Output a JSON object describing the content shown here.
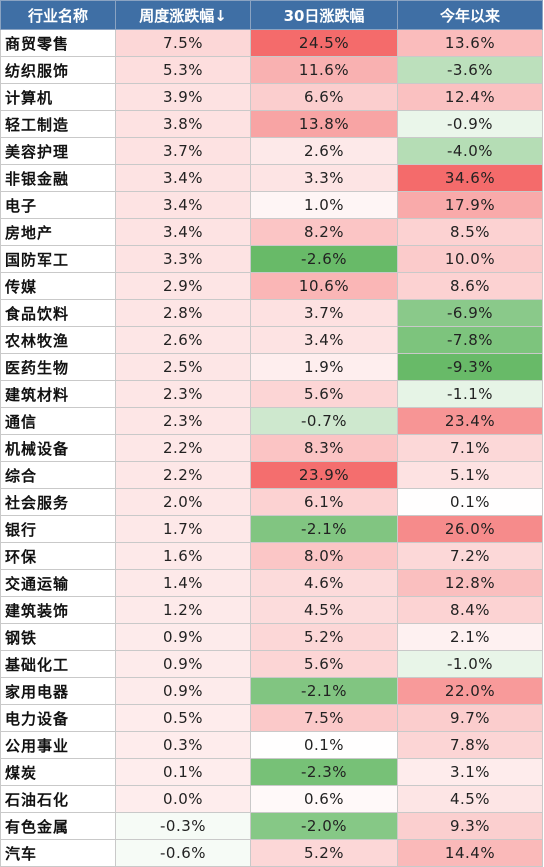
{
  "header": {
    "industry": "行业名称",
    "weekly": "周度涨跌幅↓",
    "d30": "30日涨跌幅",
    "ytd": "今年以来"
  },
  "colors": {
    "header_bg": "#3f6fa5",
    "positive_max": "#f46b6b",
    "negative_max": "#68ba68",
    "neutral": "#ffffff"
  },
  "rows": [
    {
      "name": "商贸零售",
      "weekly": "7.5%",
      "d30": "24.5%",
      "ytd": "13.6%"
    },
    {
      "name": "纺织服饰",
      "weekly": "5.3%",
      "d30": "11.6%",
      "ytd": "-3.6%"
    },
    {
      "name": "计算机",
      "weekly": "3.9%",
      "d30": "6.6%",
      "ytd": "12.4%"
    },
    {
      "name": "轻工制造",
      "weekly": "3.8%",
      "d30": "13.8%",
      "ytd": "-0.9%"
    },
    {
      "name": "美容护理",
      "weekly": "3.7%",
      "d30": "2.6%",
      "ytd": "-4.0%"
    },
    {
      "name": "非银金融",
      "weekly": "3.4%",
      "d30": "3.3%",
      "ytd": "34.6%"
    },
    {
      "name": "电子",
      "weekly": "3.4%",
      "d30": "1.0%",
      "ytd": "17.9%"
    },
    {
      "name": "房地产",
      "weekly": "3.4%",
      "d30": "8.2%",
      "ytd": "8.5%"
    },
    {
      "name": "国防军工",
      "weekly": "3.3%",
      "d30": "-2.6%",
      "ytd": "10.0%"
    },
    {
      "name": "传媒",
      "weekly": "2.9%",
      "d30": "10.6%",
      "ytd": "8.6%"
    },
    {
      "name": "食品饮料",
      "weekly": "2.8%",
      "d30": "3.7%",
      "ytd": "-6.9%"
    },
    {
      "name": "农林牧渔",
      "weekly": "2.6%",
      "d30": "3.4%",
      "ytd": "-7.8%"
    },
    {
      "name": "医药生物",
      "weekly": "2.5%",
      "d30": "1.9%",
      "ytd": "-9.3%"
    },
    {
      "name": "建筑材料",
      "weekly": "2.3%",
      "d30": "5.6%",
      "ytd": "-1.1%"
    },
    {
      "name": "通信",
      "weekly": "2.3%",
      "d30": "-0.7%",
      "ytd": "23.4%"
    },
    {
      "name": "机械设备",
      "weekly": "2.2%",
      "d30": "8.3%",
      "ytd": "7.1%"
    },
    {
      "name": "综合",
      "weekly": "2.2%",
      "d30": "23.9%",
      "ytd": "5.1%"
    },
    {
      "name": "社会服务",
      "weekly": "2.0%",
      "d30": "6.1%",
      "ytd": "0.1%"
    },
    {
      "name": "银行",
      "weekly": "1.7%",
      "d30": "-2.1%",
      "ytd": "26.0%"
    },
    {
      "name": "环保",
      "weekly": "1.6%",
      "d30": "8.0%",
      "ytd": "7.2%"
    },
    {
      "name": "交通运输",
      "weekly": "1.4%",
      "d30": "4.6%",
      "ytd": "12.8%"
    },
    {
      "name": "建筑装饰",
      "weekly": "1.2%",
      "d30": "4.5%",
      "ytd": "8.4%"
    },
    {
      "name": "钢铁",
      "weekly": "0.9%",
      "d30": "5.2%",
      "ytd": "2.1%"
    },
    {
      "name": "基础化工",
      "weekly": "0.9%",
      "d30": "5.6%",
      "ytd": "-1.0%"
    },
    {
      "name": "家用电器",
      "weekly": "0.9%",
      "d30": "-2.1%",
      "ytd": "22.0%"
    },
    {
      "name": "电力设备",
      "weekly": "0.5%",
      "d30": "7.5%",
      "ytd": "9.7%"
    },
    {
      "name": "公用事业",
      "weekly": "0.3%",
      "d30": "0.1%",
      "ytd": "7.8%"
    },
    {
      "name": "煤炭",
      "weekly": "0.1%",
      "d30": "-2.3%",
      "ytd": "3.1%"
    },
    {
      "name": "石油石化",
      "weekly": "0.0%",
      "d30": "0.6%",
      "ytd": "4.5%"
    },
    {
      "name": "有色金属",
      "weekly": "-0.3%",
      "d30": "-2.0%",
      "ytd": "9.3%"
    },
    {
      "name": "汽车",
      "weekly": "-0.6%",
      "d30": "5.2%",
      "ytd": "14.4%"
    }
  ]
}
